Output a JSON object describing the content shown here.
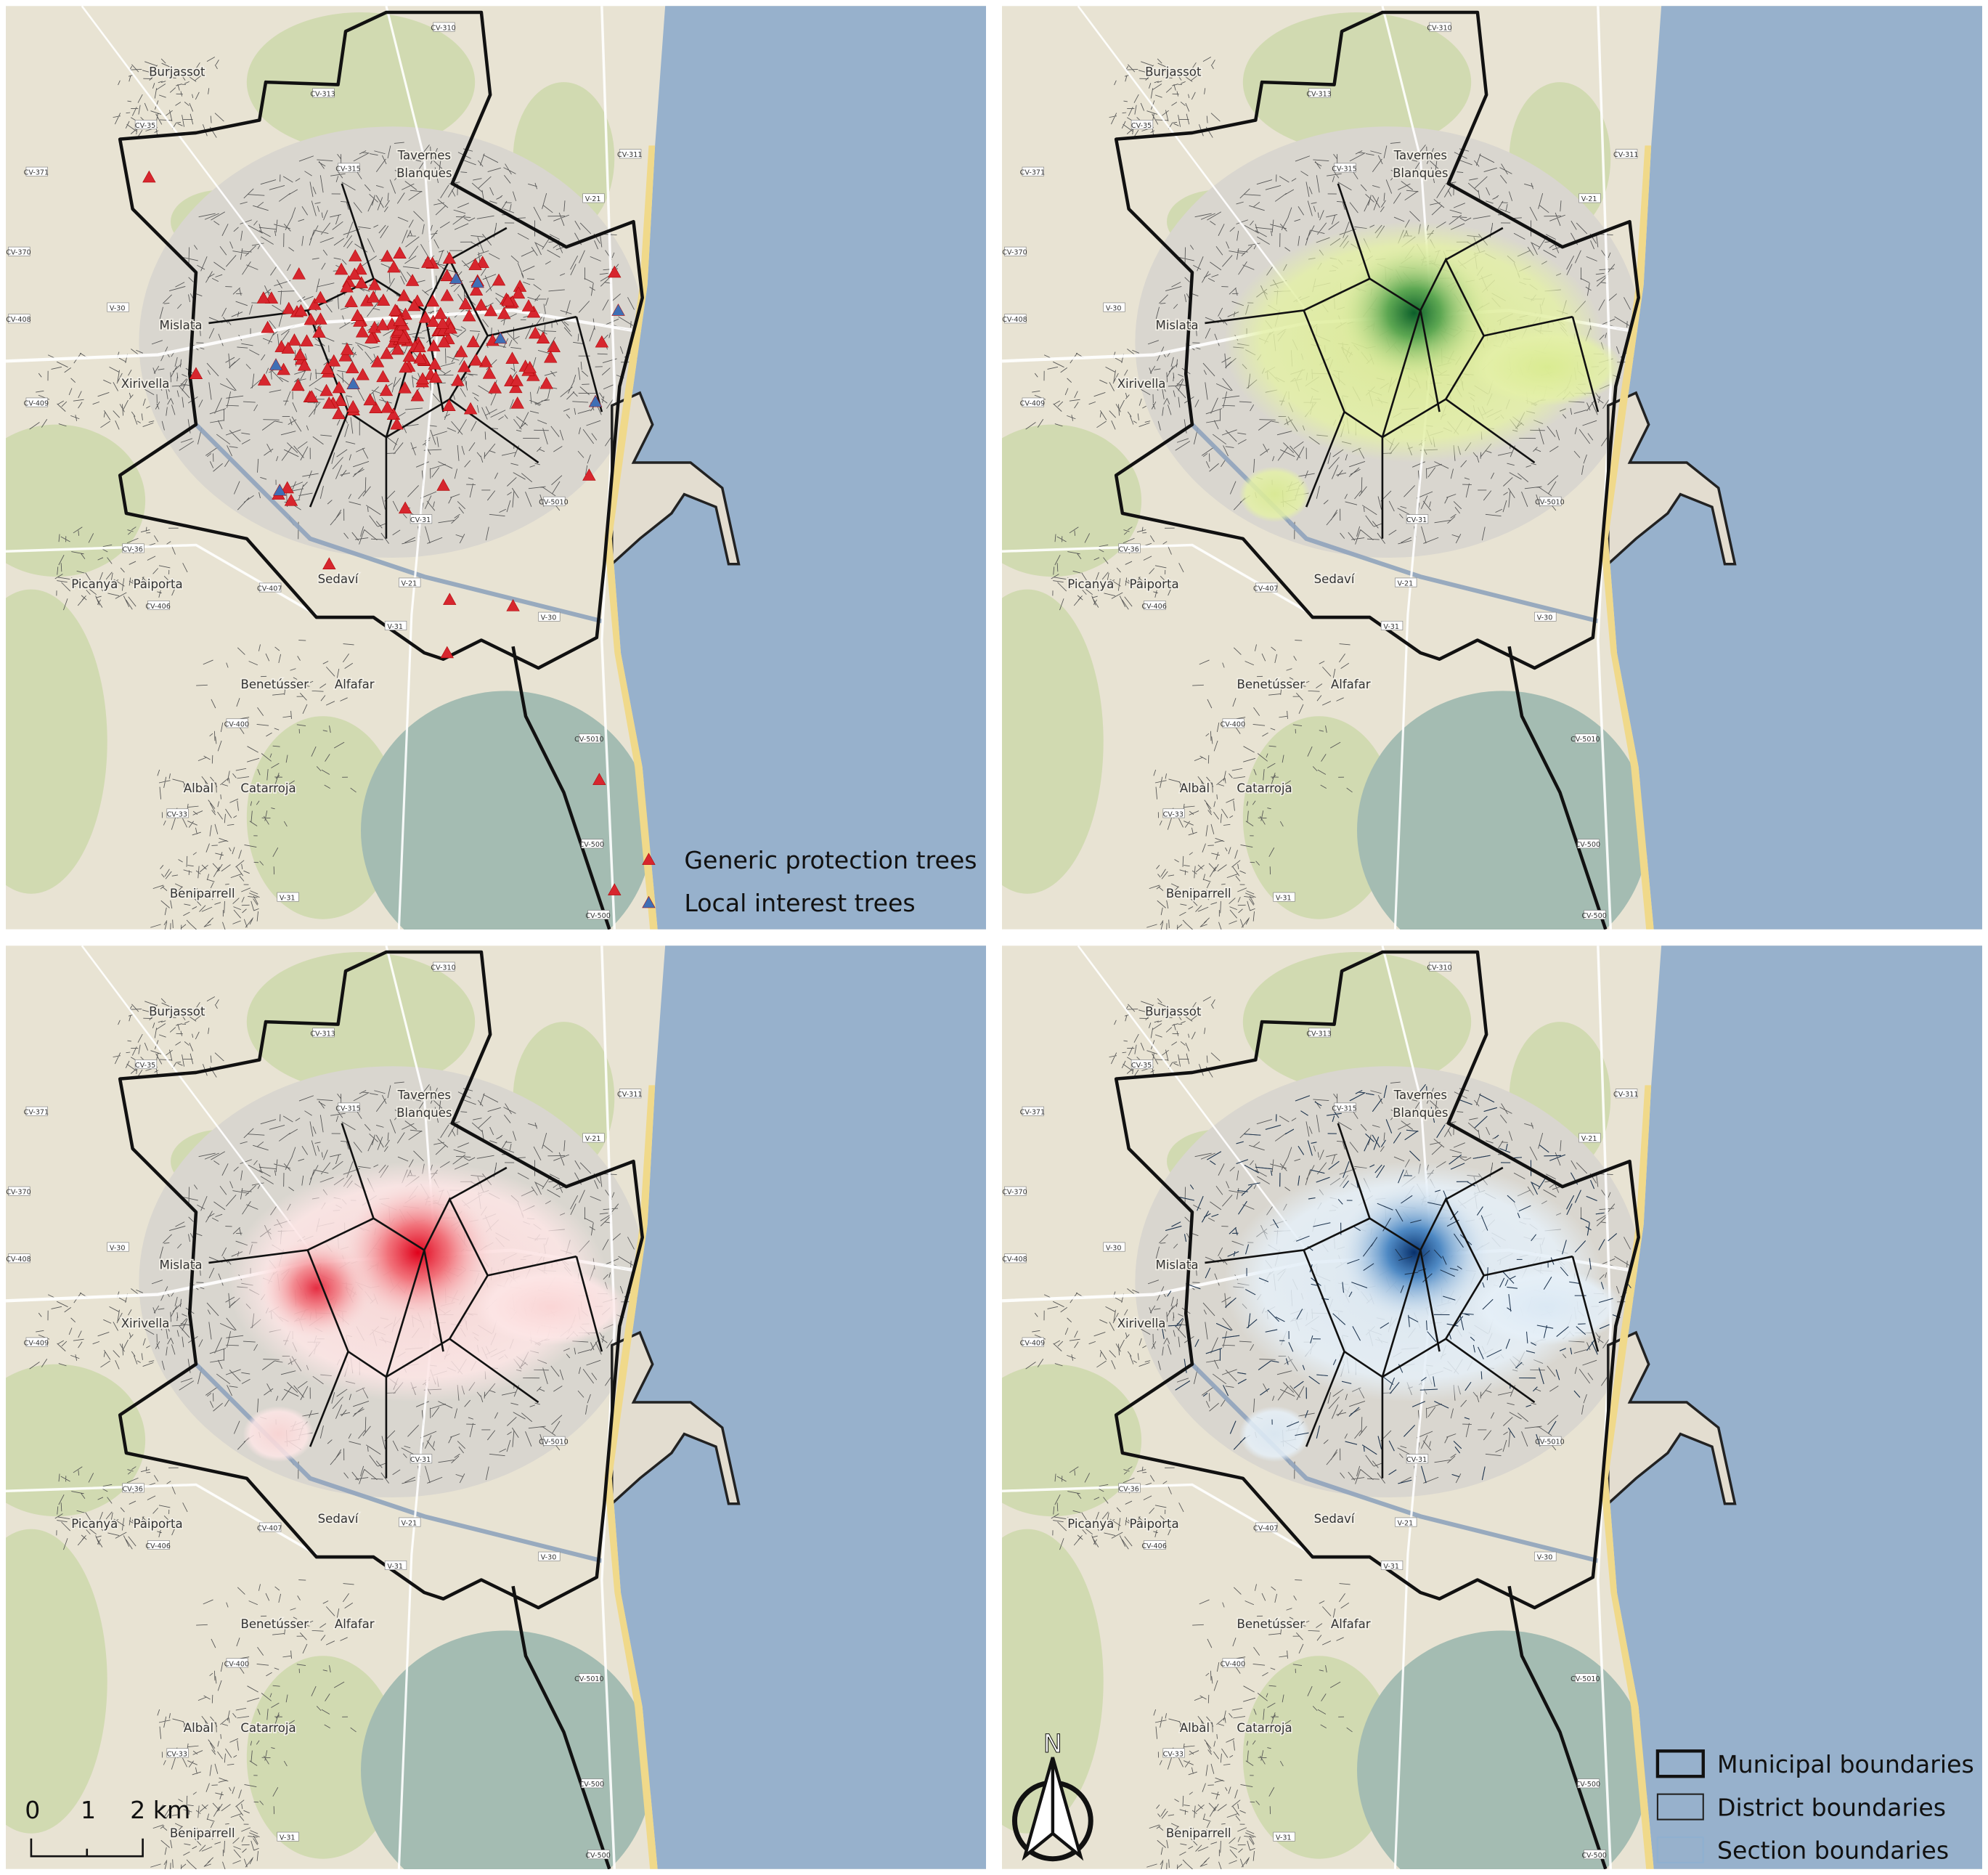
{
  "places": [
    "Burjassot",
    "Tavernes",
    "Blanques",
    "Mislata",
    "Xirivella",
    "Picanya",
    "Paiporta",
    "Sedaví",
    "Benetússer",
    "Alfafar",
    "Albal",
    "Catarroja",
    "Beniparrell"
  ],
  "roads": [
    "CV-310",
    "CV-313",
    "CV-35",
    "CV-371",
    "CV-315",
    "V-21",
    "CV-311",
    "CV-370",
    "V-30",
    "CV-408",
    "CV-409",
    "CV-36",
    "CV-31",
    "CV-407",
    "CV-406",
    "V-21",
    "CV-5010",
    "V-30",
    "V-31",
    "CV-400",
    "CV-33",
    "CV-5010",
    "CV-500",
    "V-31",
    "CV-500"
  ],
  "legend_trees": [
    "Generic protection trees",
    "Local interest trees"
  ],
  "legend_boundaries": [
    "Municipal boundaries",
    "District boundaries",
    "Section boundaries"
  ],
  "scale_bar": [
    "0",
    "1",
    "2 km"
  ],
  "north": "N"
}
